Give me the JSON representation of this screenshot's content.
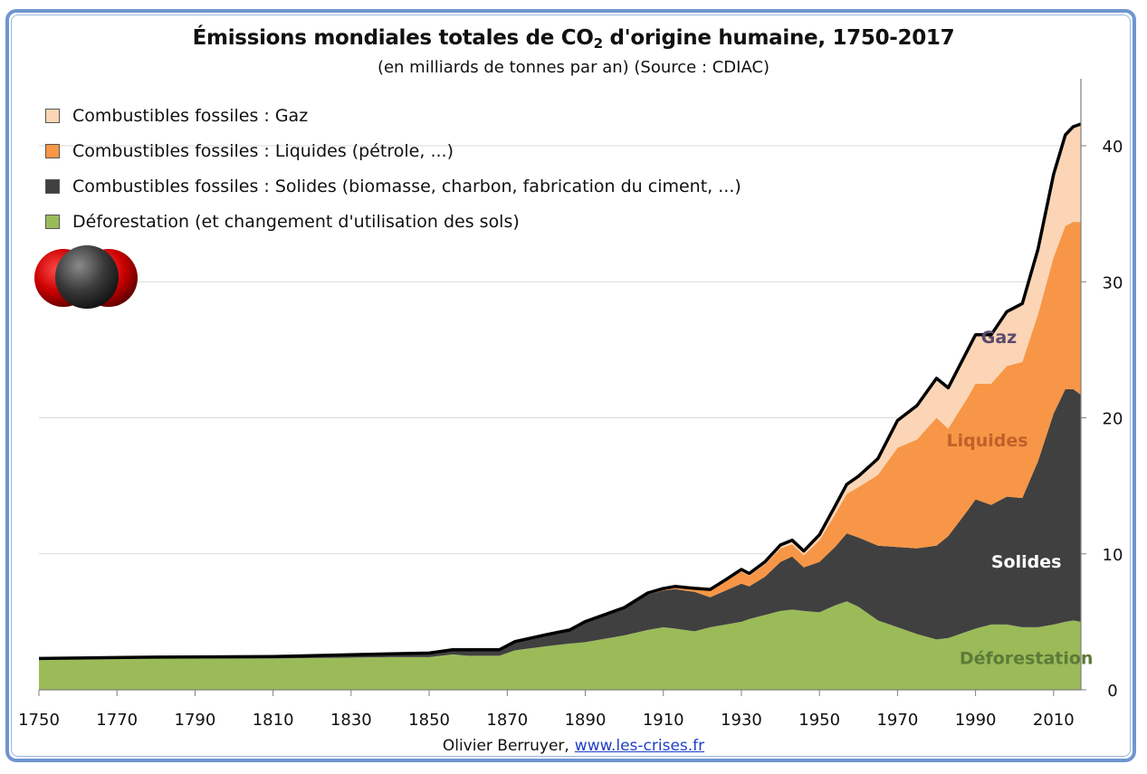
{
  "title_main": "Émissions mondiales totales de CO",
  "title_sub": "2",
  "title_end": " d'origine humaine, 1750-2017",
  "subtitle": "(en milliards de tonnes par an) (Source : CDIAC)",
  "credit_text": "Olivier Berruyer,",
  "credit_link": "www.les-crises.fr",
  "colors": {
    "gaz": "#fbd5b5",
    "liquides": "#f79646",
    "solides": "#404040",
    "deforestation": "#9bbb59",
    "total_line": "#000000",
    "frame": "#6f96cf",
    "link": "#1f3fc4"
  },
  "legend": [
    {
      "label": "Combustibles fossiles : Gaz",
      "color": "#fbd5b5"
    },
    {
      "label": "Combustibles fossiles : Liquides (pétrole, ...)",
      "color": "#f79646"
    },
    {
      "label": "Combustibles fossiles : Solides (biomasse, charbon, fabrication du ciment, ...)",
      "color": "#404040"
    },
    {
      "label": "Déforestation (et changement d'utilisation des sols)",
      "color": "#9bbb59"
    }
  ],
  "area_labels": [
    {
      "text": "Gaz",
      "year": 1996,
      "value": 25.5,
      "color": "#5b4a6e"
    },
    {
      "text": "Liquides",
      "year": 1993,
      "value": 17.9,
      "color": "#c0602a"
    },
    {
      "text": "Solides",
      "year": 2003,
      "value": 9.0,
      "color": "#ffffff"
    },
    {
      "text": "Déforestation",
      "year": 2003,
      "value": 1.9,
      "color": "#5e7a38"
    }
  ],
  "chart_data": {
    "type": "area",
    "stacked": true,
    "title": "Émissions mondiales totales de CO2 d'origine humaine, 1750-2017",
    "subtitle": "(en milliards de tonnes par an) (Source : CDIAC)",
    "xlim": [
      1750,
      2017
    ],
    "ylim": [
      0,
      45
    ],
    "x_ticks": [
      1750,
      1770,
      1790,
      1810,
      1830,
      1850,
      1870,
      1890,
      1910,
      1930,
      1950,
      1970,
      1990,
      2010
    ],
    "y_ticks": [
      0,
      10,
      20,
      30,
      40
    ],
    "y_axis_side": "right",
    "grid": true,
    "legend_position": "top-left",
    "x": [
      1750,
      1780,
      1810,
      1840,
      1850,
      1856,
      1860,
      1868,
      1872,
      1880,
      1886,
      1890,
      1900,
      1906,
      1910,
      1913,
      1918,
      1922,
      1926,
      1930,
      1932,
      1936,
      1940,
      1943,
      1946,
      1950,
      1954,
      1957,
      1960,
      1965,
      1970,
      1975,
      1980,
      1983,
      1988,
      1990,
      1994,
      1998,
      2002,
      2006,
      2010,
      2013,
      2015,
      2017
    ],
    "series": [
      {
        "name": "Déforestation (et changement d'utilisation des sols)",
        "values": [
          2.2,
          2.3,
          2.3,
          2.4,
          2.4,
          2.6,
          2.5,
          2.5,
          2.9,
          3.2,
          3.4,
          3.5,
          4.0,
          4.4,
          4.6,
          4.5,
          4.3,
          4.6,
          4.8,
          5.0,
          5.2,
          5.5,
          5.8,
          5.9,
          5.8,
          5.7,
          6.2,
          6.5,
          6.1,
          5.1,
          4.6,
          4.1,
          3.7,
          3.8,
          4.3,
          4.5,
          4.8,
          4.8,
          4.6,
          4.6,
          4.8,
          5.0,
          5.1,
          5.0
        ]
      },
      {
        "name": "Combustibles fossiles : Solides (biomasse, charbon, fabrication du ciment, ...)",
        "values": [
          0.1,
          0.1,
          0.15,
          0.25,
          0.3,
          0.35,
          0.45,
          0.45,
          0.65,
          0.85,
          1.0,
          1.5,
          2.0,
          2.6,
          2.7,
          2.9,
          2.9,
          2.2,
          2.5,
          2.8,
          2.4,
          2.8,
          3.6,
          3.9,
          3.2,
          3.7,
          4.3,
          5.0,
          5.1,
          5.5,
          5.9,
          6.3,
          6.9,
          7.5,
          8.9,
          9.5,
          8.8,
          9.4,
          9.5,
          12.2,
          15.5,
          17.1,
          17.0,
          16.7
        ]
      },
      {
        "name": "Combustibles fossiles : Liquides (pétrole, ...)",
        "values": [
          0,
          0,
          0,
          0,
          0,
          0,
          0,
          0,
          0,
          0,
          0,
          0.02,
          0.05,
          0.1,
          0.12,
          0.15,
          0.2,
          0.5,
          0.7,
          0.9,
          0.8,
          0.9,
          1.0,
          0.9,
          0.9,
          1.6,
          2.4,
          2.9,
          3.7,
          5.2,
          7.3,
          8.0,
          9.4,
          7.9,
          8.3,
          8.5,
          8.9,
          9.6,
          10.0,
          10.8,
          11.5,
          12.0,
          12.3,
          12.7
        ]
      },
      {
        "name": "Combustibles fossiles : Gaz",
        "values": [
          0,
          0,
          0,
          0,
          0,
          0,
          0,
          0,
          0,
          0,
          0,
          0,
          0,
          0.02,
          0.03,
          0.05,
          0.06,
          0.08,
          0.1,
          0.15,
          0.15,
          0.2,
          0.25,
          0.3,
          0.3,
          0.4,
          0.6,
          0.7,
          0.8,
          1.2,
          2.0,
          2.5,
          2.9,
          3.0,
          3.5,
          3.6,
          3.6,
          4.0,
          4.3,
          4.8,
          6.1,
          6.7,
          7.0,
          7.2
        ]
      }
    ]
  }
}
